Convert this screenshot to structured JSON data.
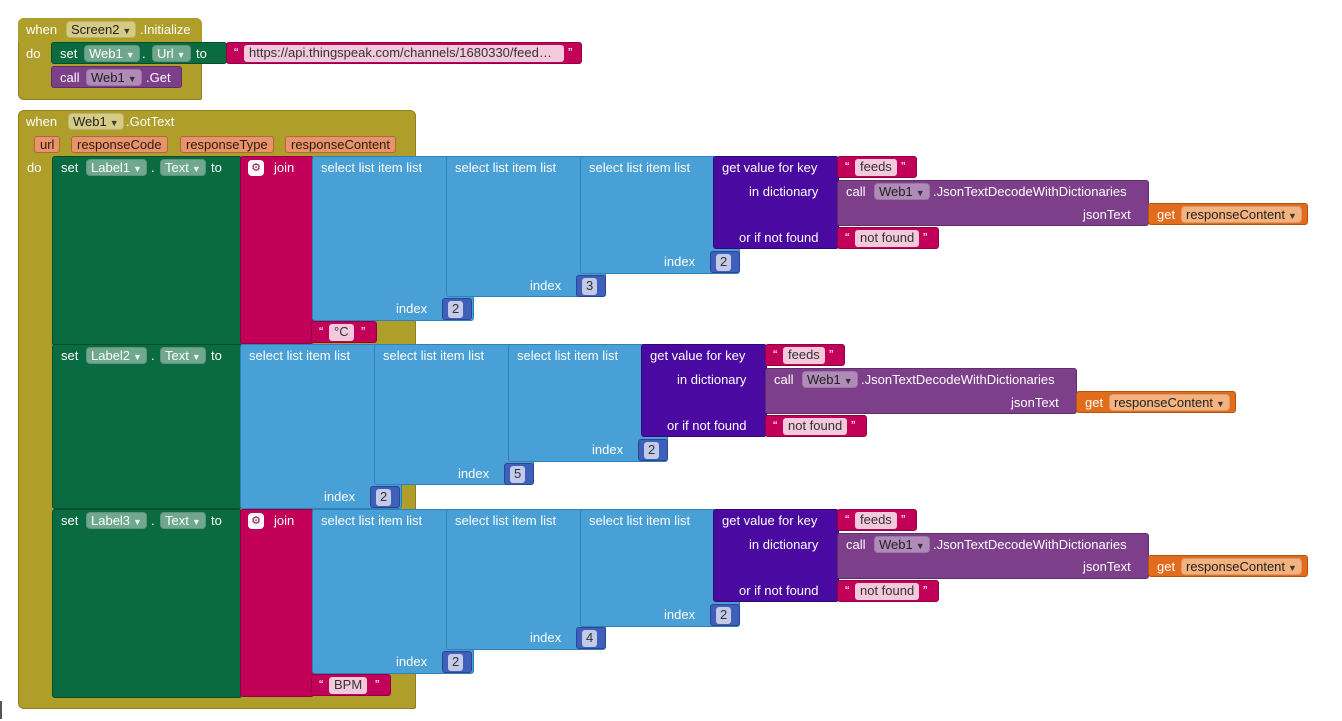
{
  "blocks": {
    "when": "when",
    "do": "do",
    "set": "set",
    "to": "to",
    "call": "call",
    "get": "get",
    "dot": ".",
    "join": "join",
    "select_list_item_list": "select list item  list",
    "index": "index",
    "get_value_for_key": "get value for key",
    "in_dictionary": "in dictionary",
    "or_if_not_found": "or if not found",
    "json_text": "jsonText",
    "json_decode_method": ".JsonTextDecodeWithDictionaries",
    "gear_glyph": "⚙",
    "dropdown_arrow": "▼",
    "open_quote": "“",
    "close_quote": "”"
  },
  "screen_init": {
    "component": "Screen2",
    "event": ".Initialize",
    "set_component": "Web1",
    "set_property": "Url",
    "url_value": "https://api.thingspeak.com/channels/1680330/feed…",
    "call_component": "Web1",
    "call_method": ".Get"
  },
  "got_text": {
    "component": "Web1",
    "event": ".GotText",
    "params": [
      "url",
      "responseCode",
      "responseType",
      "responseContent"
    ]
  },
  "setters": [
    {
      "label": "Label1",
      "property": "Text",
      "key": "feeds",
      "decode_component": "Web1",
      "get_var": "responseContent",
      "not_found": "not found",
      "index_inner": "2",
      "index_mid": "3",
      "index_outer": "2",
      "suffix": "°C"
    },
    {
      "label": "Label2",
      "property": "Text",
      "key": "feeds",
      "decode_component": "Web1",
      "get_var": "responseContent",
      "not_found": "not found",
      "index_inner": "2",
      "index_mid": "5",
      "index_outer": "2"
    },
    {
      "label": "Label3",
      "property": "Text",
      "key": "feeds",
      "decode_component": "Web1",
      "get_var": "responseContent",
      "not_found": "not found",
      "index_inner": "2",
      "index_mid": "4",
      "index_outer": "2",
      "suffix": "BPM"
    }
  ],
  "colors": {
    "event": "#b09e2b",
    "property_setter": "#0a6b40",
    "method_call": "#7e3f8a",
    "text": "#c2005a",
    "lists": "#49a0d6",
    "dictionaries": "#4a0aa1",
    "math": "#3e5fba",
    "variables": "#e16c1b"
  }
}
